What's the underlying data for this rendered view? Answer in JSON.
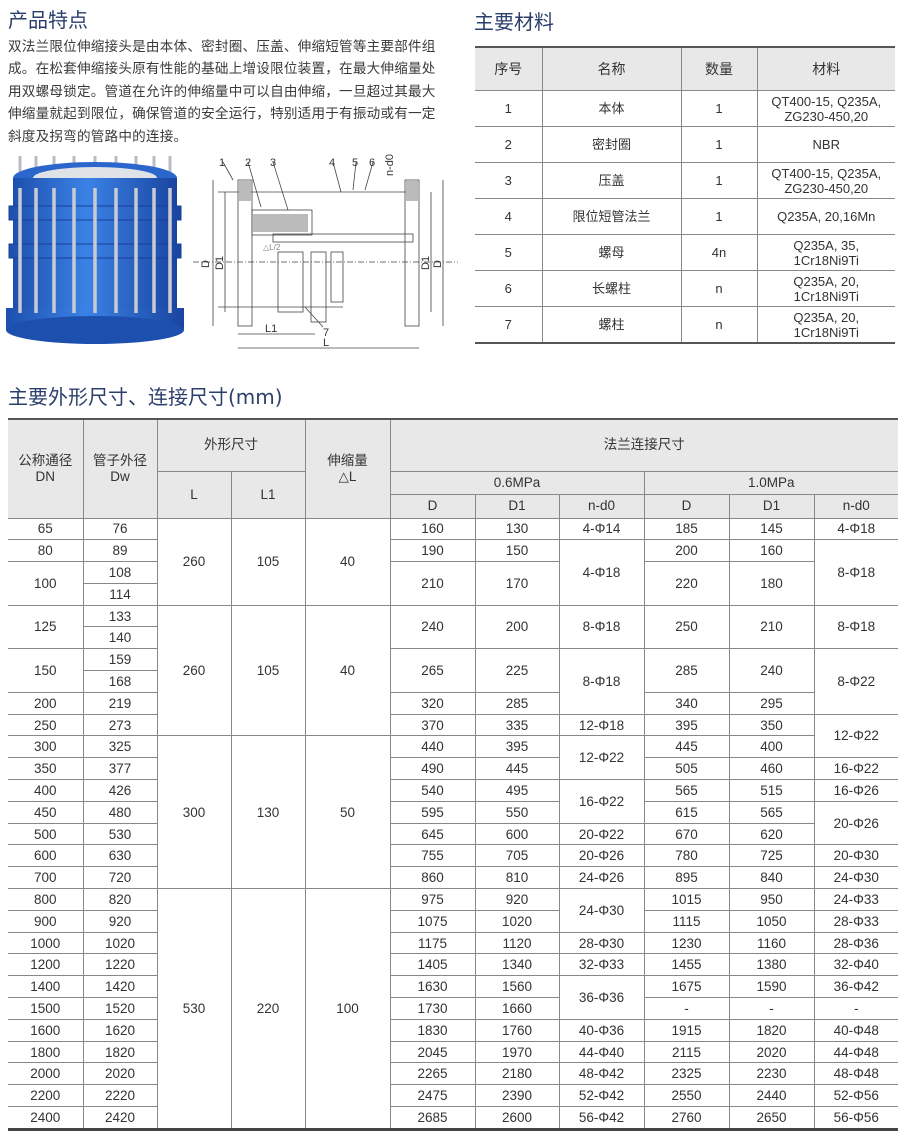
{
  "features": {
    "title": "产品特点",
    "text": "双法兰限位伸缩接头是由本体、密封圈、压盖、伸缩短管等主要部件组成。在松套伸缩接头原有性能的基础上增设限位装置，在最大伸缩量处用双螺母锁定。管道在允许的伸缩量中可以自由伸缩，一旦超过其最大伸缩量就起到限位，确保管道的安全运行，特别适用于有振动或有一定斜度及拐弯的管路中的连接。"
  },
  "drawing": {
    "part_labels": [
      "1",
      "2",
      "3",
      "4",
      "5",
      "6",
      "n-d0",
      "7"
    ],
    "dim_labels": {
      "D_left": "D",
      "D1_left": "D1",
      "D1_right": "D1",
      "D_right": "D",
      "L1": "L1",
      "L": "L",
      "half_dl": "△L/2"
    }
  },
  "colors": {
    "title": "#2b3f6b",
    "product_blue": "#2f6fd0",
    "header_bg": "#e8e8e8"
  },
  "materials": {
    "title": "主要材料",
    "headers": [
      "序号",
      "名称",
      "数量",
      "材料"
    ],
    "rows": [
      [
        "1",
        "本体",
        "1",
        "QT400-15, Q235A,\nZG230-450,20"
      ],
      [
        "2",
        "密封圈",
        "1",
        "NBR"
      ],
      [
        "3",
        "压盖",
        "1",
        "QT400-15, Q235A,\nZG230-450,20"
      ],
      [
        "4",
        "限位短管法兰",
        "1",
        "Q235A, 20,16Mn"
      ],
      [
        "5",
        "螺母",
        "4n",
        "Q235A, 35,\n1Cr18Ni9Ti"
      ],
      [
        "6",
        "长螺柱",
        "n",
        "Q235A, 20,\n1Cr18Ni9Ti"
      ],
      [
        "7",
        "螺柱",
        "n",
        "Q235A, 20,\n1Cr18Ni9Ti"
      ]
    ]
  },
  "dimensions": {
    "title": "主要外形尺寸、连接尺寸(mm)",
    "headers": {
      "dn": "公称通径\nDN",
      "dw": "管子外径\nDw",
      "outline": "外形尺寸",
      "L": "L",
      "L1": "L1",
      "stroke": "伸缩量\n△L",
      "flange": "法兰连接尺寸",
      "p1": "0.6MPa",
      "p2": "1.0MPa",
      "sub": [
        "D",
        "D1",
        "n-d0",
        "D",
        "D1",
        "n-d0"
      ]
    },
    "rows": [
      [
        "65",
        "76",
        "260",
        "105",
        "40",
        "160",
        "130",
        "4-Φ14",
        "185",
        "145",
        "4-Φ18"
      ],
      [
        "80",
        "89",
        null,
        null,
        null,
        "190",
        "150",
        "4-Φ18",
        "200",
        "160",
        "8-Φ18"
      ],
      [
        "100",
        "108",
        null,
        null,
        null,
        "210",
        "170",
        null,
        "220",
        "180",
        null
      ],
      [
        null,
        "114",
        null,
        null,
        null,
        null,
        null,
        null,
        null,
        null,
        null
      ],
      [
        "125",
        "133",
        "260",
        "105",
        "40",
        "240",
        "200",
        "8-Φ18",
        "250",
        "210",
        "8-Φ18"
      ],
      [
        null,
        "140",
        null,
        null,
        null,
        null,
        null,
        null,
        null,
        null,
        null
      ],
      [
        "150",
        "159",
        null,
        null,
        null,
        "265",
        "225",
        "8-Φ18",
        "285",
        "240",
        "8-Φ22"
      ],
      [
        null,
        "168",
        null,
        null,
        null,
        null,
        null,
        null,
        null,
        null,
        null
      ],
      [
        "200",
        "219",
        null,
        null,
        null,
        "320",
        "285",
        null,
        "340",
        "295",
        null
      ],
      [
        "250",
        "273",
        null,
        null,
        null,
        "370",
        "335",
        "12-Φ18",
        "395",
        "350",
        "12-Φ22"
      ],
      [
        "300",
        "325",
        "300",
        "130",
        "50",
        "440",
        "395",
        "12-Φ22",
        "445",
        "400",
        null
      ],
      [
        "350",
        "377",
        null,
        null,
        null,
        "490",
        "445",
        null,
        "505",
        "460",
        "16-Φ22"
      ],
      [
        "400",
        "426",
        null,
        null,
        null,
        "540",
        "495",
        "16-Φ22",
        "565",
        "515",
        "16-Φ26"
      ],
      [
        "450",
        "480",
        null,
        null,
        null,
        "595",
        "550",
        null,
        "615",
        "565",
        "20-Φ26"
      ],
      [
        "500",
        "530",
        null,
        null,
        null,
        "645",
        "600",
        "20-Φ22",
        "670",
        "620",
        null
      ],
      [
        "600",
        "630",
        null,
        null,
        null,
        "755",
        "705",
        "20-Φ26",
        "780",
        "725",
        "20-Φ30"
      ],
      [
        "700",
        "720",
        null,
        null,
        null,
        "860",
        "810",
        "24-Φ26",
        "895",
        "840",
        "24-Φ30"
      ],
      [
        "800",
        "820",
        "530",
        "220",
        "100",
        "975",
        "920",
        "24-Φ30",
        "1015",
        "950",
        "24-Φ33"
      ],
      [
        "900",
        "920",
        null,
        null,
        null,
        "1075",
        "1020",
        null,
        "1115",
        "1050",
        "28-Φ33"
      ],
      [
        "1000",
        "1020",
        null,
        null,
        null,
        "1175",
        "1120",
        "28-Φ30",
        "1230",
        "1160",
        "28-Φ36"
      ],
      [
        "1200",
        "1220",
        null,
        null,
        null,
        "1405",
        "1340",
        "32-Φ33",
        "1455",
        "1380",
        "32-Φ40"
      ],
      [
        "1400",
        "1420",
        null,
        null,
        null,
        "1630",
        "1560",
        "36-Φ36",
        "1675",
        "1590",
        "36-Φ42"
      ],
      [
        "1500",
        "1520",
        null,
        null,
        null,
        "1730",
        "1660",
        null,
        "-",
        "-",
        "-"
      ],
      [
        "1600",
        "1620",
        null,
        null,
        null,
        "1830",
        "1760",
        "40-Φ36",
        "1915",
        "1820",
        "40-Φ48"
      ],
      [
        "1800",
        "1820",
        null,
        null,
        null,
        "2045",
        "1970",
        "44-Φ40",
        "2115",
        "2020",
        "44-Φ48"
      ],
      [
        "2000",
        "2020",
        null,
        null,
        null,
        "2265",
        "2180",
        "48-Φ42",
        "2325",
        "2230",
        "48-Φ48"
      ],
      [
        "2200",
        "2220",
        null,
        null,
        null,
        "2475",
        "2390",
        "52-Φ42",
        "2550",
        "2440",
        "52-Φ56"
      ],
      [
        "2400",
        "2420",
        null,
        null,
        null,
        "2685",
        "2600",
        "56-Φ42",
        "2760",
        "2650",
        "56-Φ56"
      ]
    ]
  }
}
